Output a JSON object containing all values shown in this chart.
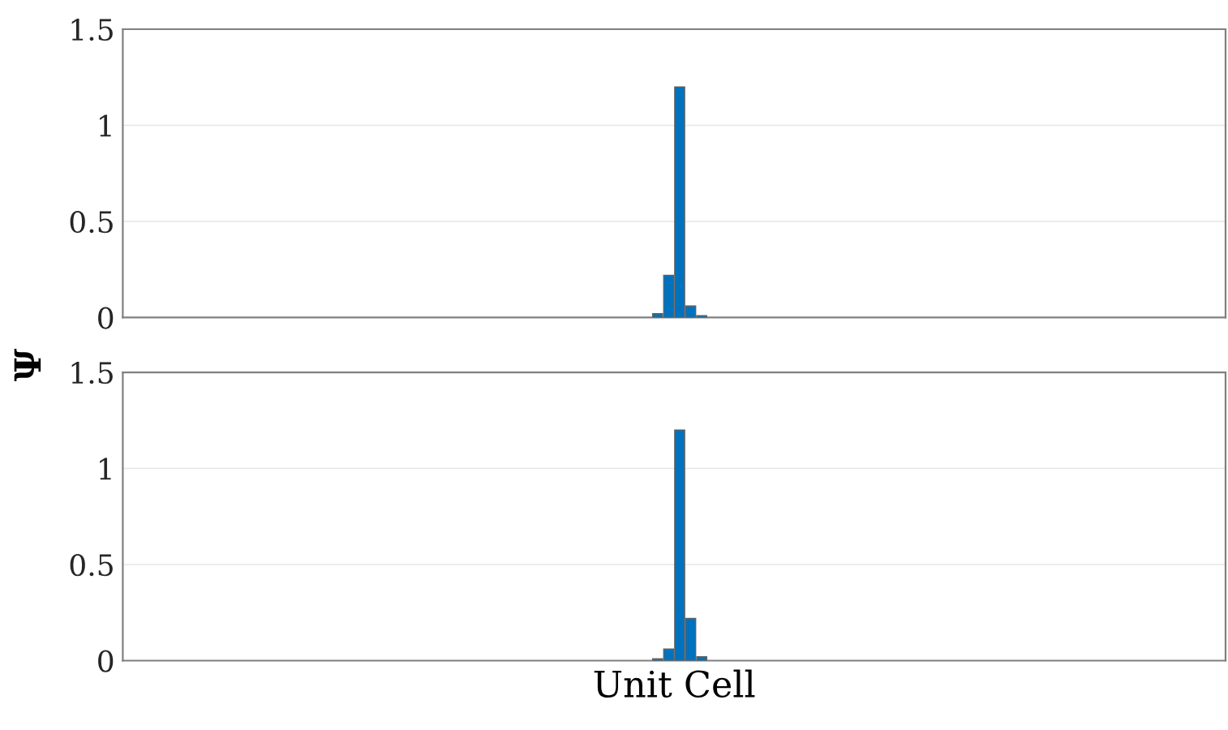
{
  "chart_data": [
    {
      "type": "bar",
      "ylabel": "Ψ",
      "categories": [
        null,
        null,
        null,
        null,
        null,
        null,
        null,
        null,
        null,
        null,
        null,
        null,
        null,
        null,
        null,
        null,
        null,
        null,
        null,
        null,
        null,
        null,
        null,
        null,
        null,
        null,
        null,
        null,
        null,
        null,
        null,
        null,
        null,
        null,
        null,
        null,
        null,
        null,
        null,
        null,
        null,
        null,
        null,
        null,
        null,
        null,
        null,
        null,
        null,
        null,
        null,
        null,
        null,
        null,
        null,
        null,
        null,
        null,
        null,
        null,
        null,
        null,
        null,
        null,
        null,
        null,
        null,
        null,
        null,
        null,
        null,
        null,
        null,
        null,
        null,
        null,
        null,
        null,
        null,
        null,
        null,
        null,
        null,
        null,
        null,
        null,
        null,
        null,
        null,
        null,
        null,
        null,
        null,
        null,
        null,
        null,
        null,
        null,
        null,
        null
      ],
      "values": [
        0,
        0,
        0,
        0,
        0,
        0,
        0,
        0,
        0,
        0,
        0,
        0,
        0,
        0,
        0,
        0,
        0,
        0,
        0,
        0,
        0,
        0,
        0,
        0,
        0,
        0,
        0,
        0,
        0,
        0,
        0,
        0,
        0,
        0,
        0,
        0,
        0,
        0,
        0,
        0,
        0,
        0,
        0,
        0,
        0,
        0,
        0,
        0,
        0.02,
        0.22,
        1.2,
        0.06,
        0.01,
        0,
        0,
        0,
        0,
        0,
        0,
        0,
        0,
        0,
        0,
        0,
        0,
        0,
        0,
        0,
        0,
        0,
        0,
        0,
        0,
        0,
        0,
        0,
        0,
        0,
        0,
        0,
        0,
        0,
        0,
        0,
        0,
        0,
        0,
        0,
        0,
        0,
        0,
        0,
        0,
        0,
        0,
        0,
        0,
        0,
        0,
        0
      ],
      "color": "#0072bd",
      "ylim": [
        0,
        1.5
      ],
      "yticks": [
        0,
        0.5,
        1,
        1.5
      ],
      "grid": "y",
      "tick_labels": "y"
    },
    {
      "type": "bar",
      "xlabel": "Unit Cell",
      "categories": [
        null,
        null,
        null,
        null,
        null,
        null,
        null,
        null,
        null,
        null,
        null,
        null,
        null,
        null,
        null,
        null,
        null,
        null,
        null,
        null,
        null,
        null,
        null,
        null,
        null,
        null,
        null,
        null,
        null,
        null,
        null,
        null,
        null,
        null,
        null,
        null,
        null,
        null,
        null,
        null,
        null,
        null,
        null,
        null,
        null,
        null,
        null,
        null,
        null,
        null,
        null,
        null,
        null,
        null,
        null,
        null,
        null,
        null,
        null,
        null,
        null,
        null,
        null,
        null,
        null,
        null,
        null,
        null,
        null,
        null,
        null,
        null,
        null,
        null,
        null,
        null,
        null,
        null,
        null,
        null,
        null,
        null,
        null,
        null,
        null,
        null,
        null,
        null,
        null,
        null,
        null,
        null,
        null,
        null,
        null,
        null,
        null,
        null,
        null,
        null
      ],
      "values": [
        0,
        0,
        0,
        0,
        0,
        0,
        0,
        0,
        0,
        0,
        0,
        0,
        0,
        0,
        0,
        0,
        0,
        0,
        0,
        0,
        0,
        0,
        0,
        0,
        0,
        0,
        0,
        0,
        0,
        0,
        0,
        0,
        0,
        0,
        0,
        0,
        0,
        0,
        0,
        0,
        0,
        0,
        0,
        0,
        0,
        0,
        0,
        0,
        0.01,
        0.06,
        1.2,
        0.22,
        0.02,
        0,
        0,
        0,
        0,
        0,
        0,
        0,
        0,
        0,
        0,
        0,
        0,
        0,
        0,
        0,
        0,
        0,
        0,
        0,
        0,
        0,
        0,
        0,
        0,
        0,
        0,
        0,
        0,
        0,
        0,
        0,
        0,
        0,
        0,
        0,
        0,
        0,
        0,
        0,
        0,
        0,
        0,
        0,
        0,
        0,
        0,
        0
      ],
      "color": "#0072bd",
      "ylim": [
        0,
        1.5
      ],
      "yticks": [
        0,
        0.5,
        1,
        1.5
      ],
      "grid": "y",
      "tick_labels": "y"
    }
  ]
}
